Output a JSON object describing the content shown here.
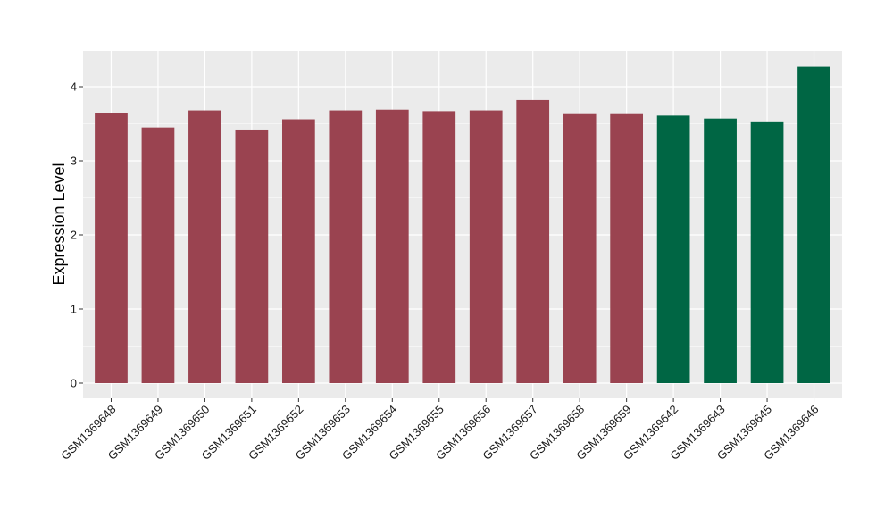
{
  "chart_data": {
    "type": "bar",
    "title": "",
    "xlabel": "",
    "ylabel": "Expression Level",
    "ylim": [
      0,
      4.4
    ],
    "yticks": [
      0,
      1,
      2,
      3,
      4
    ],
    "grid": true,
    "legend": "none",
    "categories": [
      "GSM1369648",
      "GSM1369649",
      "GSM1369650",
      "GSM1369651",
      "GSM1369652",
      "GSM1369653",
      "GSM1369654",
      "GSM1369655",
      "GSM1369656",
      "GSM1369657",
      "GSM1369658",
      "GSM1369659",
      "GSM1369642",
      "GSM1369643",
      "GSM1369645",
      "GSM1369646"
    ],
    "values": [
      3.64,
      3.45,
      3.68,
      3.41,
      3.56,
      3.68,
      3.69,
      3.67,
      3.68,
      3.82,
      3.63,
      3.63,
      3.61,
      3.57,
      3.52,
      4.27
    ],
    "groups": [
      0,
      0,
      0,
      0,
      0,
      0,
      0,
      0,
      0,
      0,
      0,
      0,
      1,
      1,
      1,
      1
    ],
    "group_colors": [
      "#9a4350",
      "#006644"
    ],
    "panel_background": "#ebebeb",
    "grid_color": "#ffffff"
  }
}
